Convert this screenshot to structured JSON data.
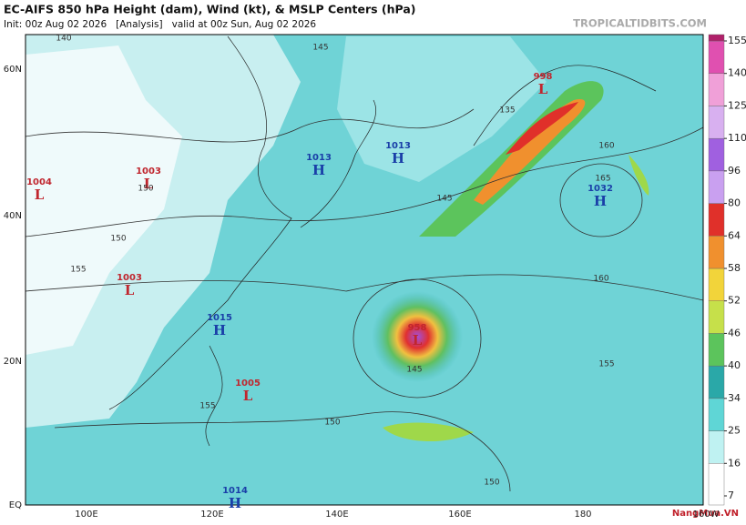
{
  "header": {
    "title": "EC-AIFS 850 hPa Height (dam), Wind (kt), & MSLP Centers (hPa)",
    "subtitle": "Init: 00z Aug 02 2026   [Analysis]   valid at 00z Sun, Aug 02 2026",
    "watermark": "TROPICALTIDBITS.COM"
  },
  "map": {
    "latitude_labels": [
      "60N",
      "40N",
      "20N",
      "EQ"
    ],
    "longitude_labels": [
      "100E",
      "120E",
      "140E",
      "160E",
      "180",
      "160W"
    ],
    "pressure_centers": [
      {
        "value": "1004",
        "letter": "L"
      },
      {
        "value": "1003",
        "letter": "L"
      },
      {
        "value": "1013",
        "letter": "H"
      },
      {
        "value": "1013",
        "letter": "H"
      },
      {
        "value": "998",
        "letter": "L"
      },
      {
        "value": "1032",
        "letter": "H"
      },
      {
        "value": "1003",
        "letter": "L"
      },
      {
        "value": "1015",
        "letter": "H"
      },
      {
        "value": "958",
        "letter": "L"
      },
      {
        "value": "1005",
        "letter": "L"
      },
      {
        "value": "1014",
        "letter": "H"
      }
    ],
    "contour_labels": [
      "140",
      "145",
      "145",
      "150",
      "155",
      "150",
      "160",
      "165",
      "160",
      "155",
      "150",
      "150",
      "135",
      "145",
      "155"
    ]
  },
  "colorbar": {
    "ticks": [
      7,
      16,
      25,
      34,
      40,
      46,
      52,
      58,
      64,
      80,
      96,
      110,
      125,
      140,
      155
    ],
    "colors": [
      "#ffffff",
      "#bff2f2",
      "#5fd6d6",
      "#2aa8a8",
      "#5cc45c",
      "#c6e04a",
      "#f2d43a",
      "#f0902e",
      "#e0302a",
      "#c9a0f0",
      "#a060e0",
      "#d8b0f0",
      "#f0a0d8",
      "#e050b0",
      "#b0206a"
    ]
  },
  "logo": "NangMua.VN"
}
